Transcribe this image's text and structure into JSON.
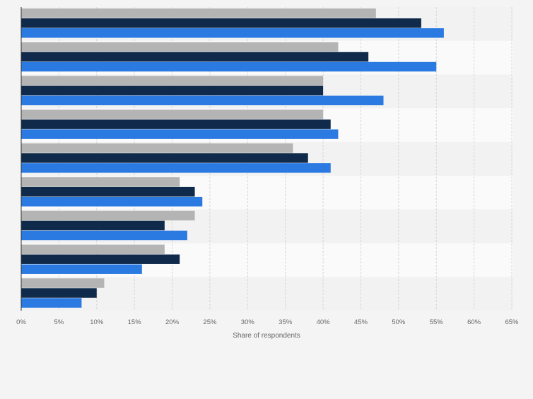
{
  "chart_data": {
    "type": "bar",
    "orientation": "horizontal",
    "categories": [
      "",
      "",
      "",
      "",
      "",
      "",
      "",
      "",
      ""
    ],
    "series": [
      {
        "color": "#b4b4b4",
        "values": [
          47,
          42,
          40,
          40,
          36,
          21,
          23,
          19,
          11
        ]
      },
      {
        "color": "#0f2a4a",
        "values": [
          53,
          46,
          40,
          41,
          38,
          23,
          19,
          21,
          10
        ]
      },
      {
        "color": "#2a7ae2",
        "values": [
          56,
          55,
          48,
          42,
          41,
          24,
          22,
          16,
          8
        ]
      }
    ],
    "xlim": [
      0,
      65
    ],
    "xticks": [
      "0%",
      "5%",
      "10%",
      "15%",
      "20%",
      "25%",
      "30%",
      "35%",
      "40%",
      "45%",
      "50%",
      "55%",
      "60%",
      "65%"
    ],
    "xlabel": "Share of respondents",
    "grid": true,
    "legend": "none"
  }
}
